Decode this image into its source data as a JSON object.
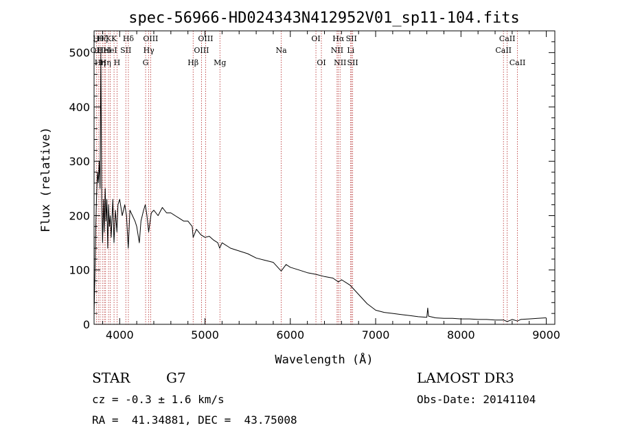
{
  "chart_data": {
    "type": "line",
    "title": "spec-56966-HD024343N412952V01_sp11-104.fits",
    "xlabel": "Wavelength (Å)",
    "ylabel": "Flux (relative)",
    "xlim": [
      3700,
      9100
    ],
    "ylim": [
      0,
      540
    ],
    "x_ticks": [
      4000,
      5000,
      6000,
      7000,
      8000,
      9000
    ],
    "y_ticks": [
      0,
      100,
      200,
      300,
      400,
      500
    ],
    "grid": false,
    "series": [
      {
        "x": [
          3700,
          3710,
          3720,
          3730,
          3740,
          3750,
          3760,
          3770,
          3780,
          3790,
          3800,
          3810,
          3820,
          3830,
          3840,
          3850,
          3860,
          3870,
          3880,
          3890,
          3900,
          3920,
          3933,
          3950,
          3968,
          3980,
          4000,
          4030,
          4060,
          4080,
          4101,
          4120,
          4150,
          4180,
          4200,
          4230,
          4250,
          4280,
          4300,
          4320,
          4340,
          4370,
          4400,
          4450,
          4500,
          4550,
          4600,
          4650,
          4700,
          4750,
          4800,
          4850,
          4861,
          4900,
          4950,
          5000,
          5050,
          5100,
          5150,
          5172,
          5200,
          5300,
          5400,
          5500,
          5600,
          5700,
          5800,
          5893,
          5950,
          6000,
          6100,
          6200,
          6300,
          6400,
          6500,
          6563,
          6600,
          6700,
          6800,
          6900,
          7000,
          7100,
          7200,
          7300,
          7400,
          7500,
          7600,
          7610,
          7620,
          7700,
          7800,
          7900,
          8000,
          8100,
          8200,
          8300,
          8400,
          8500,
          8542,
          8600,
          8662,
          8700,
          8800,
          8900,
          9000
        ],
        "values": [
          20,
          90,
          180,
          240,
          280,
          260,
          300,
          250,
          500,
          220,
          150,
          230,
          170,
          250,
          190,
          230,
          140,
          220,
          180,
          200,
          160,
          230,
          150,
          210,
          170,
          220,
          230,
          200,
          220,
          200,
          140,
          210,
          200,
          190,
          180,
          150,
          190,
          210,
          220,
          200,
          170,
          205,
          210,
          200,
          215,
          205,
          205,
          200,
          195,
          190,
          190,
          180,
          160,
          175,
          165,
          160,
          162,
          155,
          150,
          140,
          150,
          140,
          135,
          130,
          122,
          118,
          114,
          98,
          110,
          105,
          100,
          95,
          92,
          88,
          85,
          78,
          82,
          72,
          55,
          38,
          26,
          22,
          20,
          18,
          16,
          14,
          13,
          30,
          15,
          12,
          11,
          11,
          10,
          10,
          9,
          9,
          8,
          8,
          5,
          9,
          6,
          9,
          10,
          11,
          12
        ]
      }
    ],
    "lines": [
      {
        "x": 3727,
        "label": "OII",
        "row": 1
      },
      {
        "x": 3750,
        "label": "Hθ",
        "row": 0
      },
      {
        "x": 3771,
        "label": "Hη",
        "row": 2
      },
      {
        "x": 3798,
        "label": "Hζ",
        "row": 0
      },
      {
        "x": 3820,
        "label": "HeI",
        "row": 1
      },
      {
        "x": 3835,
        "label": "Hη",
        "row": 2
      },
      {
        "x": 3869,
        "label": "K",
        "row": 0
      },
      {
        "x": 3889,
        "label": "HeI",
        "row": 1
      },
      {
        "x": 3934,
        "label": "K",
        "row": 0
      },
      {
        "x": 3969,
        "label": "H",
        "row": 2
      },
      {
        "x": 4072,
        "label": "SII",
        "row": 1
      },
      {
        "x": 4102,
        "label": "Hδ",
        "row": 0
      },
      {
        "x": 4304,
        "label": "G",
        "row": 2
      },
      {
        "x": 4341,
        "label": "Hγ",
        "row": 1
      },
      {
        "x": 4363,
        "label": "OIII",
        "row": 0
      },
      {
        "x": 4861,
        "label": "Hβ",
        "row": 2
      },
      {
        "x": 4959,
        "label": "OIII",
        "row": 1
      },
      {
        "x": 5007,
        "label": "OIII",
        "row": 0
      },
      {
        "x": 5175,
        "label": "Mg",
        "row": 2
      },
      {
        "x": 5894,
        "label": "Na",
        "row": 1
      },
      {
        "x": 6300,
        "label": "OI",
        "row": 0
      },
      {
        "x": 6364,
        "label": "OI",
        "row": 2
      },
      {
        "x": 6548,
        "label": "NII",
        "row": 1
      },
      {
        "x": 6563,
        "label": "Hα",
        "row": 0
      },
      {
        "x": 6583,
        "label": "NII",
        "row": 2
      },
      {
        "x": 6708,
        "label": "Li",
        "row": 1
      },
      {
        "x": 6716,
        "label": "SII",
        "row": 0
      },
      {
        "x": 6731,
        "label": "SII",
        "row": 2
      },
      {
        "x": 8498,
        "label": "CaII",
        "row": 1
      },
      {
        "x": 8542,
        "label": "CaII",
        "row": 0
      },
      {
        "x": 8662,
        "label": "CaII",
        "row": 2
      }
    ]
  },
  "info": {
    "object_class": "STAR",
    "subclass": "G7",
    "survey": "LAMOST DR3",
    "redshift": "cz = -0.3 ± 1.6 km/s",
    "obs_date": "Obs-Date: 20141104",
    "coords": "RA =  41.34881, DEC =  43.75008"
  },
  "colors": {
    "axis": "#000000",
    "spectrum": "#000000",
    "line_marker": "#b22222"
  }
}
